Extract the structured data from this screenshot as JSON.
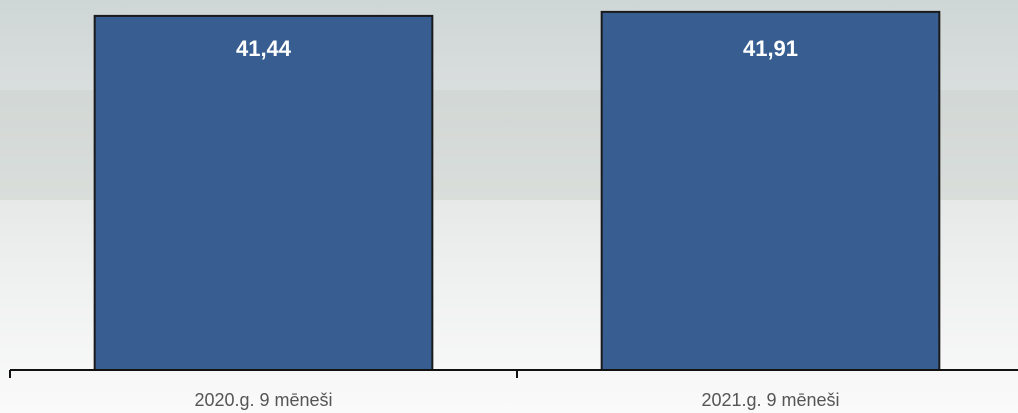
{
  "chart_data": {
    "type": "bar",
    "categories": [
      "2020.g. 9 mēneši",
      "2021.g. 9 mēneši"
    ],
    "values": [
      41.44,
      41.91
    ],
    "value_labels": [
      "41,44",
      "41,91"
    ],
    "color": "#375d91",
    "ylim": [
      0,
      43.3
    ]
  }
}
